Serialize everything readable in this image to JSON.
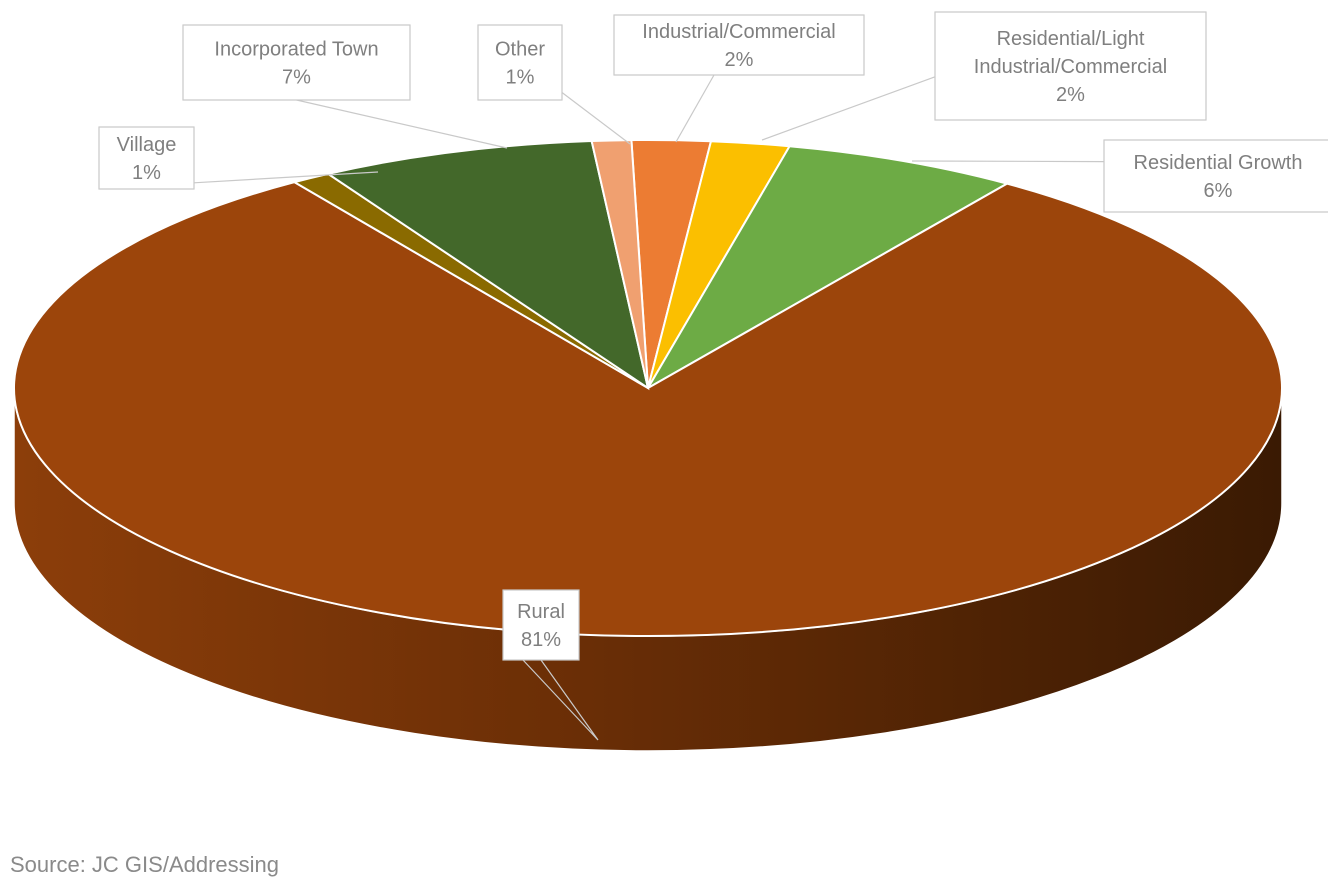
{
  "chart_data": {
    "type": "pie",
    "title": "",
    "categories": [
      "Rural",
      "Village",
      "Incorporated Town",
      "Other",
      "Industrial/Commercial",
      "Residential/Light Industrial/Commercial",
      "Residential Growth"
    ],
    "values": [
      81,
      1,
      7,
      1,
      2,
      2,
      6
    ],
    "label_lines": [
      [
        "Rural",
        "81%"
      ],
      [
        "Village",
        "1%"
      ],
      [
        "Incorporated Town",
        "7%"
      ],
      [
        "Other",
        "1%"
      ],
      [
        "Industrial/Commercial",
        "2%"
      ],
      [
        "Residential/Light",
        "Industrial/Commercial",
        "2%"
      ],
      [
        "Residential Growth",
        "6%"
      ]
    ],
    "colors": [
      "#9c450b",
      "#8a6a00",
      "#43682a",
      "#f0a070",
      "#ec7c33",
      "#fbbf00",
      "#6dab45"
    ],
    "style": "3d"
  },
  "source": "Source: JC GIS/Addressing"
}
